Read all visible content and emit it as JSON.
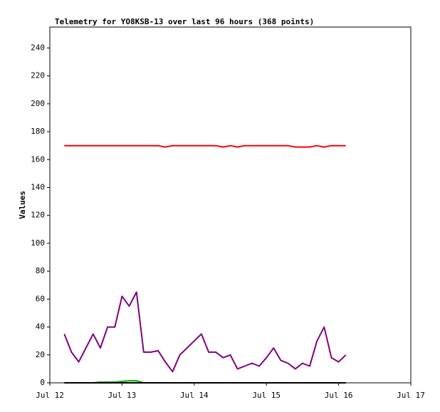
{
  "chart_data": {
    "type": "line",
    "title": "Telemetry for YO8KSB-13 over last 96 hours (368 points)",
    "y_label": "Values",
    "x": [
      0.2,
      0.3,
      0.4,
      0.5,
      0.6,
      0.7,
      0.8,
      0.9,
      1.0,
      1.1,
      1.2,
      1.3,
      1.4,
      1.5,
      1.6,
      1.7,
      1.8,
      1.9,
      2.0,
      2.1,
      2.2,
      2.3,
      2.4,
      2.5,
      2.6,
      2.7,
      2.8,
      2.9,
      3.0,
      3.1,
      3.2,
      3.3,
      3.4,
      3.5,
      3.6,
      3.7,
      3.8,
      3.9,
      4.0,
      4.1
    ],
    "series": [
      {
        "color": "#ff0000",
        "values": [
          170,
          170,
          170,
          170,
          170,
          170,
          170,
          170,
          170,
          170,
          170,
          170,
          170,
          170,
          169,
          170,
          170,
          170,
          170,
          170,
          170,
          170,
          169,
          170,
          169,
          170,
          170,
          170,
          170,
          170,
          170,
          170,
          169,
          169,
          169,
          170,
          169,
          170,
          170,
          170
        ]
      },
      {
        "color": "#800080",
        "values": [
          35,
          22,
          15,
          25,
          35,
          25,
          40,
          40,
          62,
          55,
          65,
          22,
          22,
          23,
          15,
          8,
          20,
          25,
          30,
          35,
          22,
          22,
          18,
          20,
          10,
          12,
          14,
          12,
          18,
          25,
          16,
          14,
          10,
          14,
          12,
          30,
          40,
          18,
          15,
          20
        ]
      },
      {
        "color": "#00aa00",
        "values": [
          0,
          0,
          0,
          0,
          0,
          0.5,
          0.5,
          0.5,
          1,
          1.5,
          1.5,
          0,
          0,
          0,
          0,
          0,
          0,
          0,
          0,
          0,
          0,
          0,
          0,
          0,
          0,
          0,
          0,
          0,
          0,
          0,
          0,
          0,
          0,
          0,
          0,
          0,
          0,
          0,
          0,
          0
        ]
      },
      {
        "color": "#000000",
        "values": [
          0,
          0,
          0,
          0,
          0,
          0,
          0,
          0,
          0,
          0,
          0,
          0,
          0,
          0,
          0,
          0,
          0,
          0,
          0,
          0,
          0,
          0,
          0,
          0,
          0,
          0,
          0,
          0,
          0,
          0,
          0,
          0,
          0,
          0,
          0,
          0,
          0,
          0,
          0,
          0
        ]
      }
    ],
    "xlim": [
      0,
      5
    ],
    "xticks": [
      {
        "value": 0,
        "label": "Jul 12"
      },
      {
        "value": 1,
        "label": "Jul 13"
      },
      {
        "value": 2,
        "label": "Jul 14"
      },
      {
        "value": 3,
        "label": "Jul 15"
      },
      {
        "value": 4,
        "label": "Jul 16"
      },
      {
        "value": 5,
        "label": "Jul 17"
      }
    ],
    "ylim": [
      0,
      255
    ],
    "yticks": [
      0,
      20,
      40,
      60,
      80,
      100,
      120,
      140,
      160,
      180,
      200,
      220,
      240
    ]
  }
}
